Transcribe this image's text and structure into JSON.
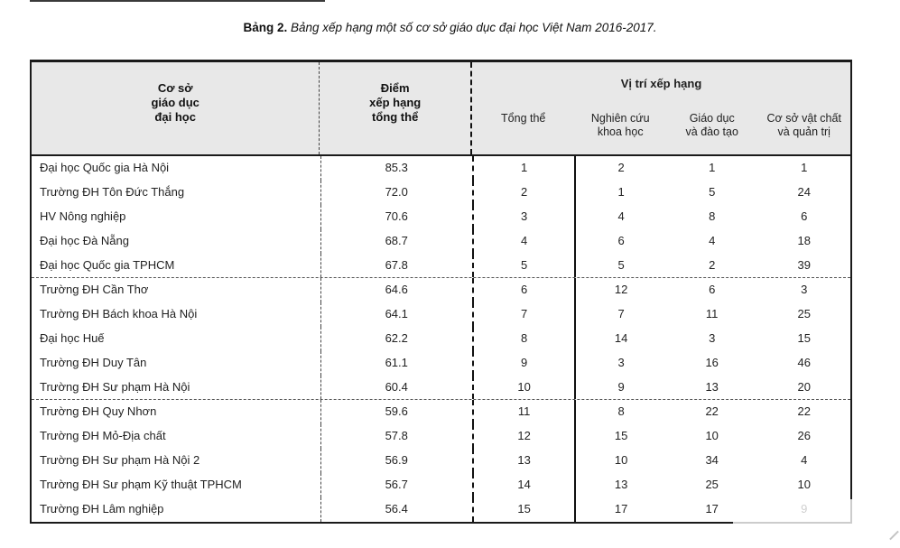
{
  "caption": {
    "label": "Bảng 2.",
    "text": " Bảng xếp hạng một số cơ sở giáo dục đại học Việt Nam 2016-2017."
  },
  "table": {
    "colors": {
      "header_bg": "#e8e8e8",
      "border": "#1a1a1a",
      "text": "#1f1f1f"
    },
    "group_size": 5,
    "header": {
      "col_institution": "Cơ sở\ngiáo dục\nđại học",
      "col_score": "Điểm\nxếp hạng\ntổng thể",
      "group_title": "Vị trí xếp hạng",
      "subcols": [
        "Tổng thể",
        "Nghiên cứu\nkhoa học",
        "Giáo dục\nvà đào tạo",
        "Cơ sở vật chất\nvà quản trị"
      ]
    },
    "rows": [
      {
        "institution": "Đại học Quốc gia Hà Nội",
        "score": "85.3",
        "overall": "1",
        "research": "2",
        "education": "1",
        "facilities": "1"
      },
      {
        "institution": "Trường ĐH Tôn Đức Thắng",
        "score": "72.0",
        "overall": "2",
        "research": "1",
        "education": "5",
        "facilities": "24"
      },
      {
        "institution": "HV Nông nghiệp",
        "score": "70.6",
        "overall": "3",
        "research": "4",
        "education": "8",
        "facilities": "6"
      },
      {
        "institution": "Đại học Đà Nẵng",
        "score": "68.7",
        "overall": "4",
        "research": "6",
        "education": "4",
        "facilities": "18"
      },
      {
        "institution": "Đại học Quốc gia TPHCM",
        "score": "67.8",
        "overall": "5",
        "research": "5",
        "education": "2",
        "facilities": "39"
      },
      {
        "institution": "Trường ĐH Cần Thơ",
        "score": "64.6",
        "overall": "6",
        "research": "12",
        "education": "6",
        "facilities": "3"
      },
      {
        "institution": "Trường ĐH Bách khoa Hà Nội",
        "score": "64.1",
        "overall": "7",
        "research": "7",
        "education": "11",
        "facilities": "25"
      },
      {
        "institution": "Đại học Huế",
        "score": "62.2",
        "overall": "8",
        "research": "14",
        "education": "3",
        "facilities": "15"
      },
      {
        "institution": "Trường ĐH Duy Tân",
        "score": "61.1",
        "overall": "9",
        "research": "3",
        "education": "16",
        "facilities": "46"
      },
      {
        "institution": "Trường ĐH Sư phạm Hà Nội",
        "score": "60.4",
        "overall": "10",
        "research": "9",
        "education": "13",
        "facilities": "20"
      },
      {
        "institution": "Trường ĐH Quy Nhơn",
        "score": "59.6",
        "overall": "11",
        "research": "8",
        "education": "22",
        "facilities": "22"
      },
      {
        "institution": "Trường ĐH Mỏ-Địa chất",
        "score": "57.8",
        "overall": "12",
        "research": "15",
        "education": "10",
        "facilities": "26"
      },
      {
        "institution": "Trường ĐH Sư phạm Hà Nội 2",
        "score": "56.9",
        "overall": "13",
        "research": "10",
        "education": "34",
        "facilities": "4"
      },
      {
        "institution": "Trường ĐH Sư phạm Kỹ thuật TPHCM",
        "score": "56.7",
        "overall": "14",
        "research": "13",
        "education": "25",
        "facilities": "10"
      },
      {
        "institution": "Trường ĐH Lâm nghiệp",
        "score": "56.4",
        "overall": "15",
        "research": "17",
        "education": "17",
        "facilities": "9"
      }
    ]
  }
}
